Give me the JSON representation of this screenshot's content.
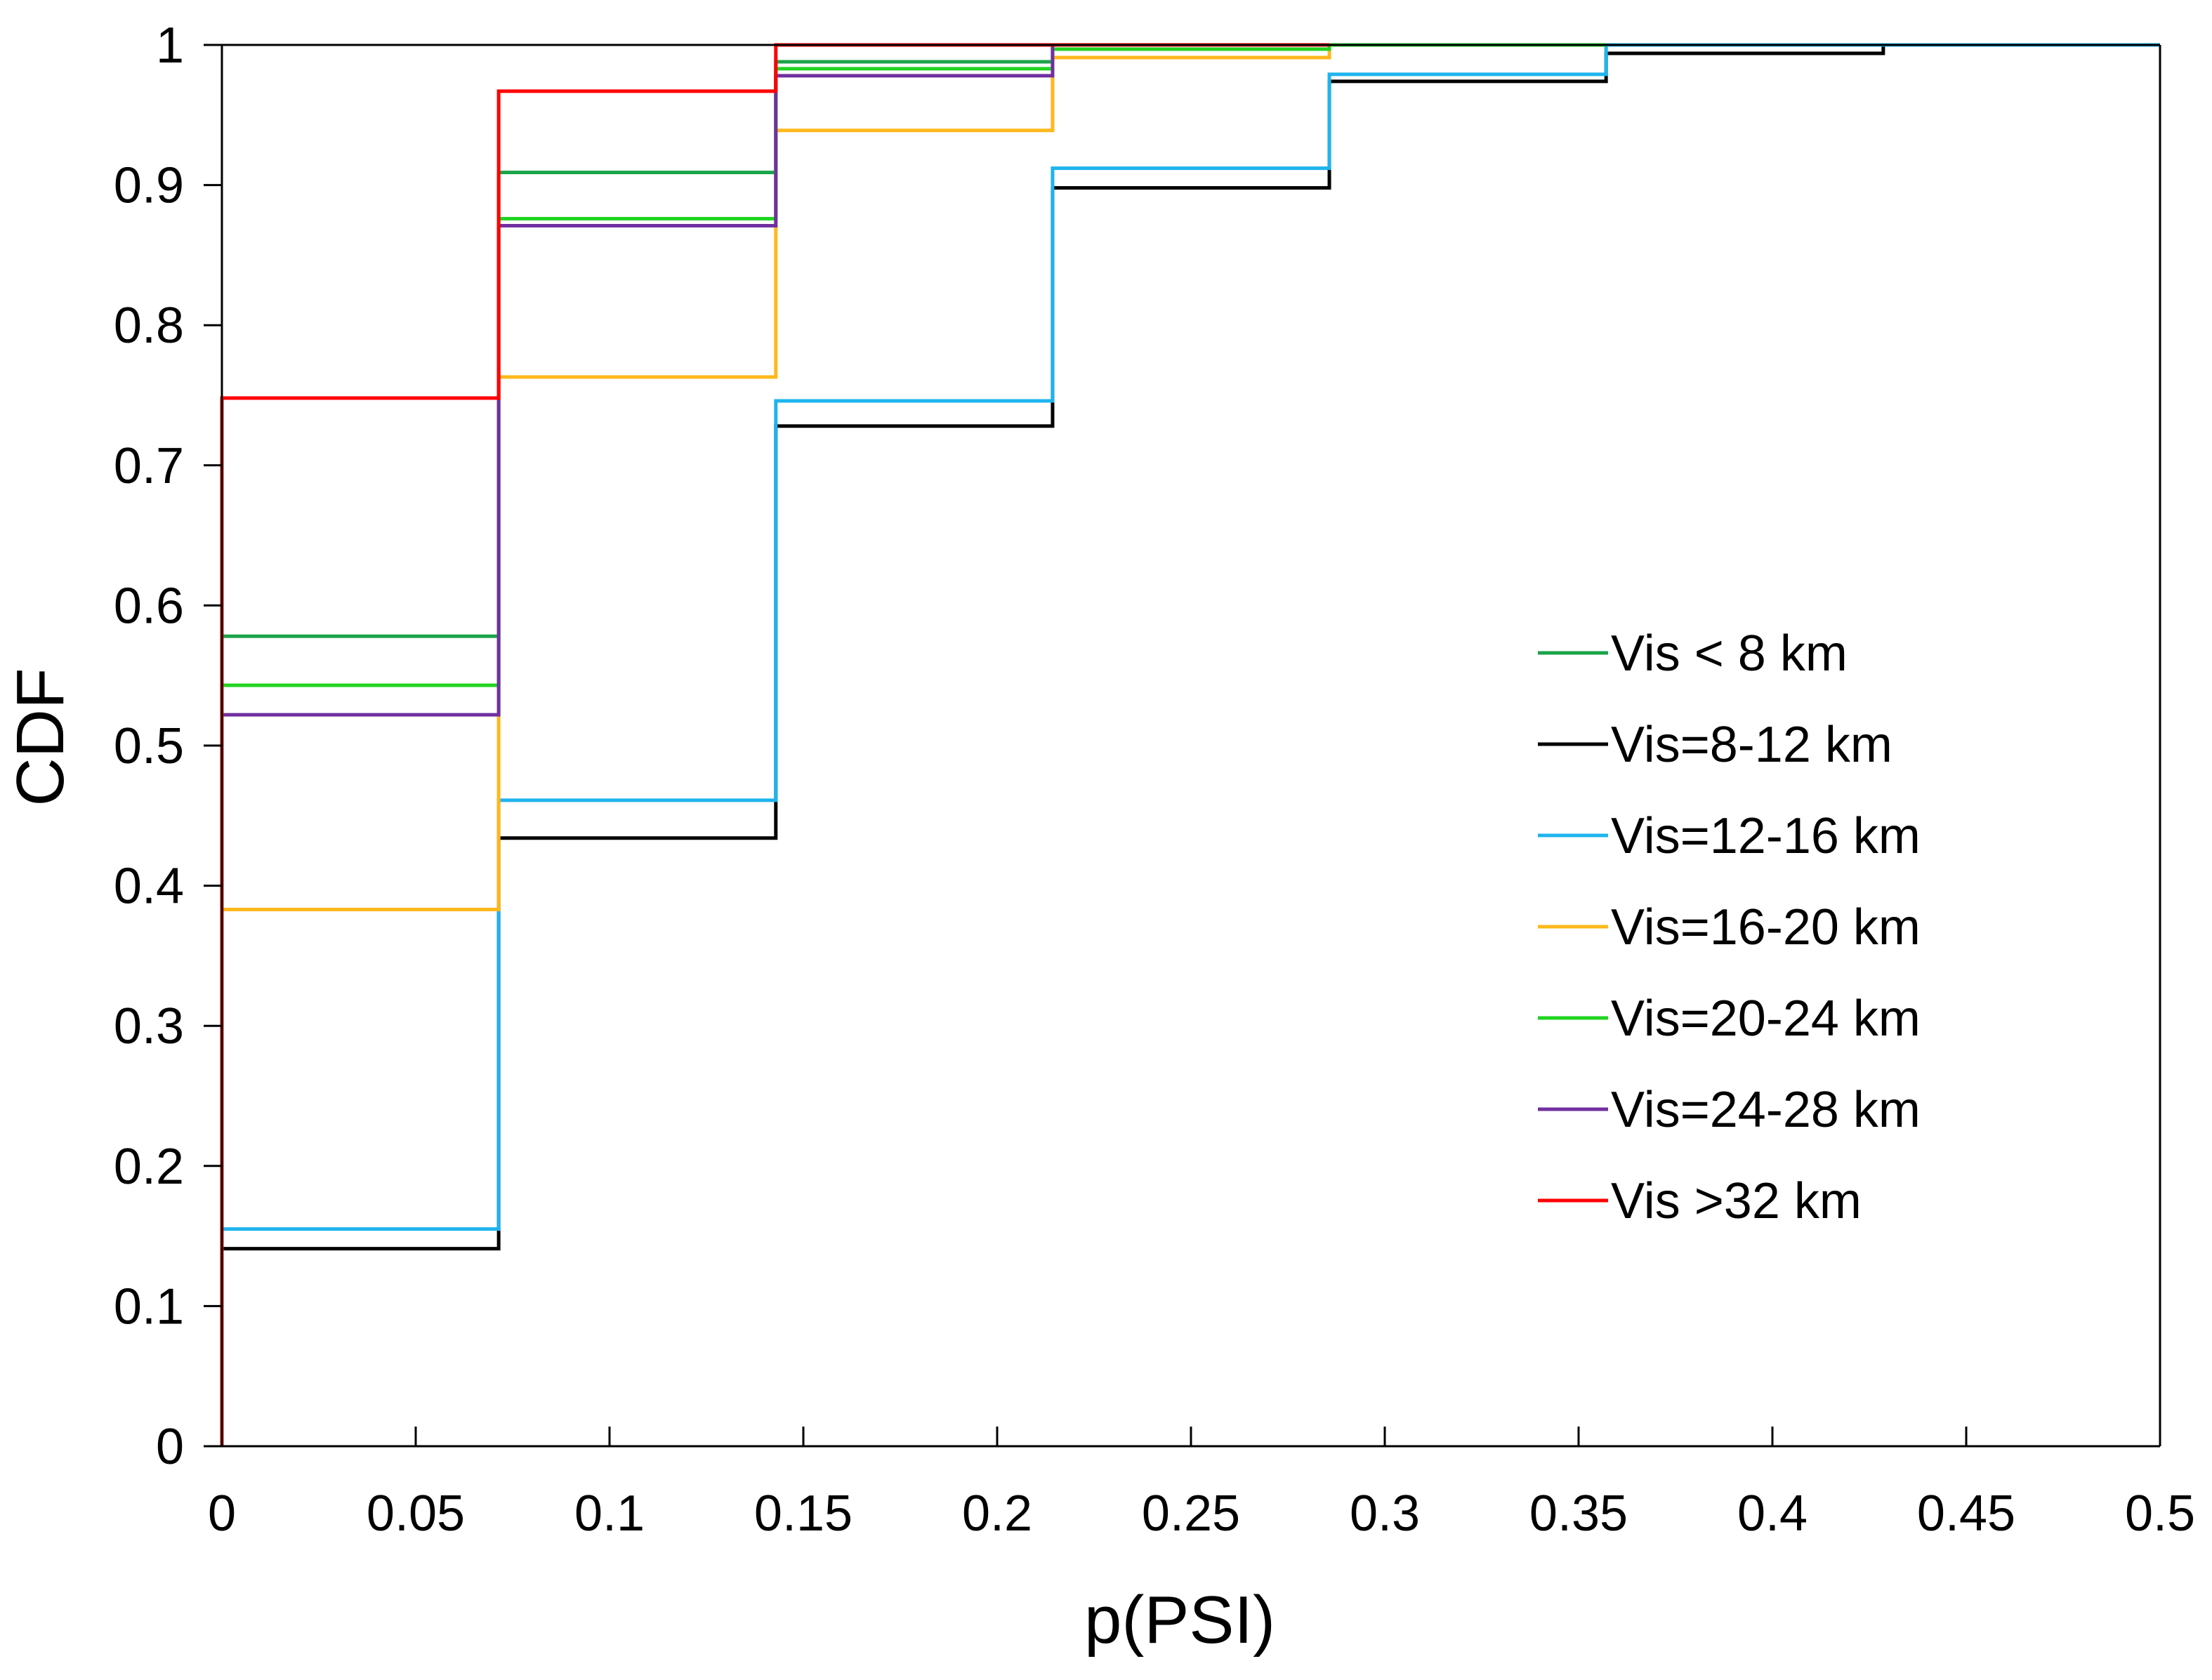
{
  "chart_data": {
    "type": "line",
    "step": "post",
    "title": "",
    "xlabel": "p(PSI)",
    "ylabel": "CDF",
    "xlim": [
      0,
      0.5
    ],
    "ylim": [
      0,
      1
    ],
    "xticks": [
      "0",
      "0.05",
      "0.1",
      "0.15",
      "0.2",
      "0.25",
      "0.3",
      "0.35",
      "0.4",
      "0.45",
      "0.5"
    ],
    "yticks": [
      "0",
      "0.1",
      "0.2",
      "0.3",
      "0.4",
      "0.5",
      "0.6",
      "0.7",
      "0.8",
      "0.9",
      "1"
    ],
    "grid": false,
    "legend_position": "center-right",
    "series": [
      {
        "name": "Vis < 8 km",
        "color": "#1aa34a",
        "x": [
          0,
          0.0714,
          0.1429,
          0.2143,
          0.2857
        ],
        "y": [
          0.578,
          0.909,
          0.988,
          1.0,
          1.0
        ]
      },
      {
        "name": "Vis=8-12 km",
        "color": "#000000",
        "x": [
          0,
          0.0714,
          0.1429,
          0.2143,
          0.2857,
          0.3571,
          0.4286,
          0.5
        ],
        "y": [
          0.141,
          0.434,
          0.728,
          0.898,
          0.974,
          0.994,
          1.0,
          1.0
        ]
      },
      {
        "name": "Vis=12-16 km",
        "color": "#1eb4ee",
        "x": [
          0,
          0.0714,
          0.1429,
          0.2143,
          0.2857,
          0.3571,
          0.5
        ],
        "y": [
          0.155,
          0.461,
          0.746,
          0.912,
          0.979,
          1.0,
          1.0
        ]
      },
      {
        "name": "Vis=16-20 km",
        "color": "#ffb81c",
        "x": [
          0,
          0.0714,
          0.1429,
          0.2143,
          0.2857,
          0.3571
        ],
        "y": [
          0.383,
          0.763,
          0.939,
          0.991,
          1.0,
          1.0
        ]
      },
      {
        "name": "Vis=20-24 km",
        "color": "#22d422",
        "x": [
          0,
          0.0714,
          0.1429,
          0.2143,
          0.2857,
          0.3571
        ],
        "y": [
          0.543,
          0.876,
          0.983,
          0.997,
          1.0,
          1.0
        ]
      },
      {
        "name": "Vis=24-28 km",
        "color": "#7030a0",
        "x": [
          0,
          0.0714,
          0.1429,
          0.2143,
          0.2857
        ],
        "y": [
          0.522,
          0.871,
          0.978,
          1.0,
          1.0
        ]
      },
      {
        "name": "Vis >32 km",
        "color": "#ff0000",
        "x": [
          0,
          0.0714,
          0.1429,
          0.2143,
          0.2857
        ],
        "y": [
          0.748,
          0.967,
          1.0,
          1.0,
          1.0
        ]
      }
    ]
  }
}
